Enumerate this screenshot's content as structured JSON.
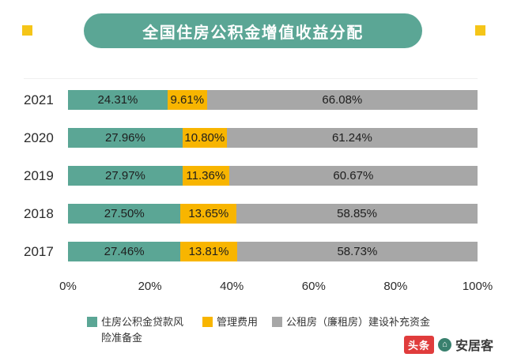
{
  "title": "全国住房公积金增值收益分配",
  "chart_data": {
    "type": "bar",
    "orientation": "horizontal",
    "stacked": true,
    "title": "全国住房公积金增值收益分配",
    "categories": [
      "2021",
      "2020",
      "2019",
      "2018",
      "2017"
    ],
    "series": [
      {
        "name": "住房公积金贷款风险准备金",
        "color": "#5BA695",
        "values": [
          24.31,
          27.96,
          27.97,
          27.5,
          27.46
        ]
      },
      {
        "name": "管理费用",
        "color": "#F8B500",
        "values": [
          9.61,
          10.8,
          11.36,
          13.65,
          13.81
        ]
      },
      {
        "name": "公租房（廉租房）建设补充资金",
        "color": "#A7A7A7",
        "values": [
          66.08,
          61.24,
          60.67,
          58.85,
          58.73
        ]
      }
    ],
    "x_ticks": [
      "0%",
      "20%",
      "40%",
      "60%",
      "80%",
      "100%"
    ],
    "xlim": [
      0,
      100
    ],
    "value_suffix": "%",
    "grid": false,
    "legend_position": "bottom"
  },
  "accent": {
    "banner_color": "#5BA695",
    "square_color": "#F5C518"
  },
  "watermark": {
    "brand1": "头条",
    "brand2": "安居客",
    "icon_glyph": "⌂"
  }
}
